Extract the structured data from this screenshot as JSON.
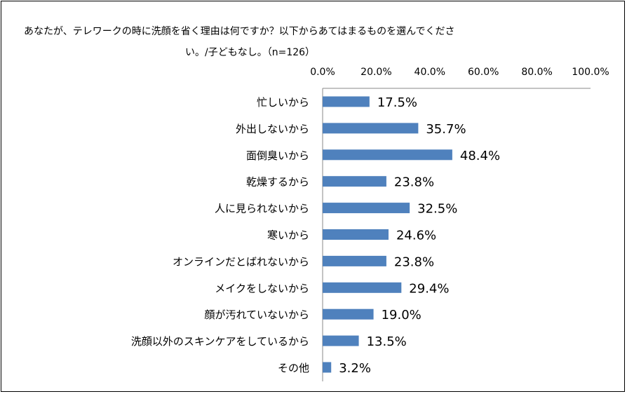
{
  "chart_data": {
    "type": "bar",
    "orientation": "horizontal",
    "title": "あなたが、テレワークの時に洗顔を省く理由は何ですか？以下からあてはまるものを選んでください。/子どもなし。（n=126）",
    "title_lines": [
      "あなたが、テレワークの時に洗顔を省く理由は何ですか？以下からあてはまるものを選んでくださ",
      "い。/子どもなし。（n=126）"
    ],
    "categories": [
      "忙しいから",
      "外出しないから",
      "面倒臭いから",
      "乾燥するから",
      "人に見られないから",
      "寒いから",
      "オンラインだとばれないから",
      "メイクをしないから",
      "顔が汚れていないから",
      "洗顔以外のスキンケアをしているから",
      "その他"
    ],
    "values": [
      17.5,
      35.7,
      48.4,
      23.8,
      32.5,
      24.6,
      23.8,
      29.4,
      19.0,
      13.5,
      3.2
    ],
    "value_labels": [
      "17.5%",
      "35.7%",
      "48.4%",
      "23.8%",
      "32.5%",
      "24.6%",
      "23.8%",
      "29.4%",
      "19.0%",
      "13.5%",
      "3.2%"
    ],
    "xlim": [
      0,
      100
    ],
    "x_ticks": [
      "0.0%",
      "20.0%",
      "40.0%",
      "60.0%",
      "80.0%",
      "100.0%"
    ],
    "x_axis_position": "top",
    "grid": false,
    "legend": "none",
    "bar_color": "#4f81bd"
  }
}
